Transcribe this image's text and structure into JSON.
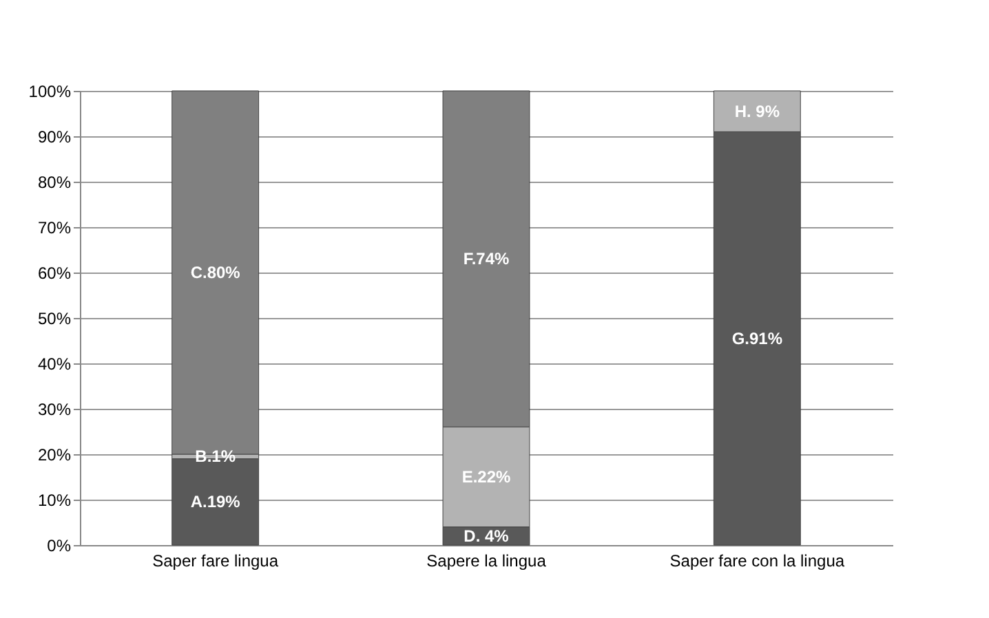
{
  "chart_data": {
    "type": "bar",
    "stacked": true,
    "categories": [
      "Saper fare lingua",
      "Sapere la lingua",
      "Saper fare con la lingua"
    ],
    "series": [
      {
        "colors": [
          "#595959",
          "#595959",
          "#595959"
        ],
        "values": [
          19,
          4,
          91
        ],
        "value_labels": [
          "A.19%",
          "D. 4%",
          "G.91%"
        ]
      },
      {
        "colors": [
          "#b3b3b3",
          "#b3b3b3",
          null
        ],
        "values": [
          1,
          22,
          null
        ],
        "value_labels": [
          "B.1%",
          "E.22%",
          null
        ]
      },
      {
        "colors": [
          "#808080",
          "#808080",
          "#b3b3b3"
        ],
        "values": [
          80,
          74,
          9
        ],
        "value_labels": [
          "C.80%",
          "F.74%",
          "H. 9%"
        ]
      }
    ],
    "ylim": [
      0,
      100
    ],
    "yticks": [
      {
        "value": 0,
        "label": "0%"
      },
      {
        "value": 10,
        "label": "10%"
      },
      {
        "value": 20,
        "label": "20%"
      },
      {
        "value": 30,
        "label": "30%"
      },
      {
        "value": 40,
        "label": "40%"
      },
      {
        "value": 50,
        "label": "50%"
      },
      {
        "value": 60,
        "label": "60%"
      },
      {
        "value": 70,
        "label": "70%"
      },
      {
        "value": 80,
        "label": "80%"
      },
      {
        "value": 90,
        "label": "90%"
      },
      {
        "value": 100,
        "label": "100%"
      }
    ],
    "grid": "y"
  }
}
